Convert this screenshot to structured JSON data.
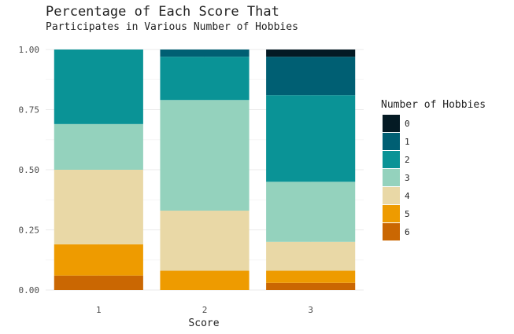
{
  "chart_data": {
    "type": "bar",
    "stacked": true,
    "title": "Percentage of Each Score That",
    "subtitle": "Participates in Various Number of Hobbies",
    "xlabel": "Score",
    "ylabel": "",
    "ylim": [
      0,
      1
    ],
    "yticks": [
      "0.00",
      "0.25",
      "0.50",
      "0.75",
      "1.00"
    ],
    "categories": [
      "1",
      "2",
      "3"
    ],
    "grid": true,
    "legend_position": "right",
    "legend_title": "Number of Hobbies",
    "series": [
      {
        "name": "0",
        "color": "#041a24",
        "values": [
          0.0,
          0.0,
          0.03
        ]
      },
      {
        "name": "1",
        "color": "#005f73",
        "values": [
          0.0,
          0.03,
          0.16
        ]
      },
      {
        "name": "2",
        "color": "#0a9396",
        "values": [
          0.31,
          0.18,
          0.36
        ]
      },
      {
        "name": "3",
        "color": "#94d2bd",
        "values": [
          0.19,
          0.46,
          0.25
        ]
      },
      {
        "name": "4",
        "color": "#e9d8a6",
        "values": [
          0.31,
          0.25,
          0.12
        ]
      },
      {
        "name": "5",
        "color": "#ee9b00",
        "values": [
          0.13,
          0.08,
          0.05
        ]
      },
      {
        "name": "6",
        "color": "#ca6702",
        "values": [
          0.06,
          0.0,
          0.03
        ]
      }
    ]
  }
}
